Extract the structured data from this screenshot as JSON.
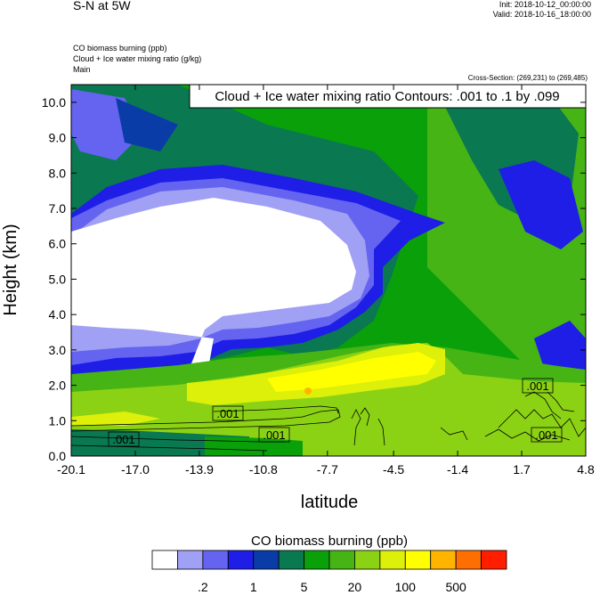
{
  "header": {
    "title": "S-N at 5W",
    "init": "Init: 2018-10-12_00:00:00",
    "valid": "Valid: 2018-10-16_18:00:00"
  },
  "fields": [
    "CO biomass burning   (ppb)",
    "Cloud + Ice water mixing ratio   (g/kg)",
    "Main"
  ],
  "cross_section": "Cross-Section: (269,231) to (269,485)",
  "chart_data": {
    "type": "heatmap",
    "title": "",
    "contour_label": "Cloud + Ice water mixing ratio Contours: .001 to .1 by .099",
    "xlabel": "latitude",
    "ylabel": "Height (km)",
    "xlim": [
      -20.1,
      4.8
    ],
    "ylim": [
      0,
      10.5
    ],
    "x_ticks": [
      "-20.1",
      "-17.0",
      "-13.9",
      "-10.8",
      "-7.7",
      "-4.5",
      "-1.4",
      "1.7",
      "4.8"
    ],
    "y_ticks": [
      "0.0",
      "1.0",
      "2.0",
      "3.0",
      "4.0",
      "5.0",
      "6.0",
      "7.0",
      "8.0",
      "9.0",
      "10.0"
    ],
    "contour_labels": [
      ".001",
      ".001",
      ".001",
      ".001",
      ".001"
    ],
    "colorbar": {
      "title": "CO biomass burning  (ppb)",
      "colors": [
        "#ffffff",
        "#a0a0f5",
        "#6464f0",
        "#1e1ee6",
        "#0a3ca8",
        "#0a7850",
        "#0aa00a",
        "#46b414",
        "#8cd214",
        "#dcf00a",
        "#ffff00",
        "#ffb400",
        "#ff6e00",
        "#ff1e00"
      ],
      "labels": [
        ".2",
        "1",
        "5",
        "20",
        "100",
        "500"
      ]
    }
  }
}
